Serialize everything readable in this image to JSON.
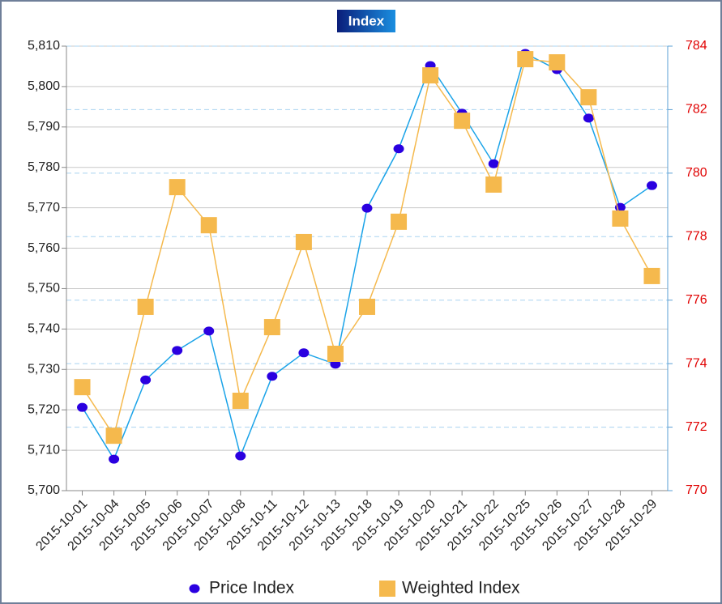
{
  "chart_data": {
    "type": "line",
    "title": "Index",
    "categories": [
      "2015-10-01",
      "2015-10-04",
      "2015-10-05",
      "2015-10-06",
      "2015-10-07",
      "2015-10-08",
      "2015-10-11",
      "2015-10-12",
      "2015-10-13",
      "2015-10-18",
      "2015-10-19",
      "2015-10-20",
      "2015-10-21",
      "2015-10-22",
      "2015-10-25",
      "2015-10-26",
      "2015-10-27",
      "2015-10-28",
      "2015-10-29"
    ],
    "series": [
      {
        "name": "Price Index",
        "color": "#1aa3e8",
        "marker_color": "#2a00e0",
        "marker": "circle",
        "values": [
          5720.6,
          5707.8,
          5727.4,
          5734.7,
          5739.5,
          5708.6,
          5728.3,
          5734.1,
          5731.3,
          5769.9,
          5784.6,
          5805.2,
          5793.4,
          5780.9,
          5808.2,
          5804.2,
          5792.2,
          5770.1,
          5775.5
        ]
      },
      {
        "name": "Weighted Index",
        "color": "#f5b94d",
        "marker_color": "#f5b94d",
        "marker": "square",
        "axis": "y2",
        "values": [
          773.26,
          771.73,
          775.79,
          779.56,
          778.36,
          772.83,
          775.15,
          777.83,
          774.31,
          775.79,
          778.47,
          783.08,
          781.65,
          779.64,
          783.59,
          783.49,
          782.39,
          778.57,
          776.76
        ]
      }
    ],
    "ylim": [
      5700,
      5810
    ],
    "yticks": [
      {
        "value": 5700,
        "label": "5,700"
      },
      {
        "value": 5710,
        "label": "5,710"
      },
      {
        "value": 5720,
        "label": "5,720"
      },
      {
        "value": 5730,
        "label": "5,730"
      },
      {
        "value": 5740,
        "label": "5,740"
      },
      {
        "value": 5750,
        "label": "5,750"
      },
      {
        "value": 5760,
        "label": "5,760"
      },
      {
        "value": 5770,
        "label": "5,770"
      },
      {
        "value": 5780,
        "label": "5,780"
      },
      {
        "value": 5790,
        "label": "5,790"
      },
      {
        "value": 5800,
        "label": "5,800"
      },
      {
        "value": 5810,
        "label": "5,810"
      }
    ],
    "y2lim": [
      770,
      784
    ],
    "y2ticks": [
      770,
      772,
      774,
      776,
      778,
      780,
      782,
      784
    ],
    "grid": true,
    "legend": "bottom"
  }
}
